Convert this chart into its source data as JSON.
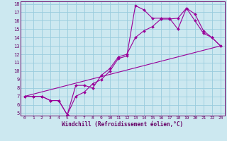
{
  "xlabel": "Windchill (Refroidissement éolien,°C)",
  "bg_color": "#cce8f0",
  "line_color": "#990099",
  "grid_color": "#99ccdd",
  "text_color": "#660066",
  "spine_color": "#660066",
  "xlim": [
    -0.5,
    23.5
  ],
  "ylim": [
    4.7,
    18.3
  ],
  "xticks": [
    0,
    1,
    2,
    3,
    4,
    5,
    6,
    7,
    8,
    9,
    10,
    11,
    12,
    13,
    14,
    15,
    16,
    17,
    18,
    19,
    20,
    21,
    22,
    23
  ],
  "yticks": [
    5,
    6,
    7,
    8,
    9,
    10,
    11,
    12,
    13,
    14,
    15,
    16,
    17,
    18
  ],
  "line1_x": [
    0,
    1,
    2,
    3,
    4,
    5,
    6,
    7,
    8,
    9,
    10,
    11,
    12,
    13,
    14,
    15,
    16,
    17,
    18,
    19,
    20,
    21,
    22,
    23
  ],
  "line1_y": [
    7.0,
    7.0,
    7.0,
    6.5,
    6.5,
    4.8,
    8.3,
    8.3,
    8.0,
    9.5,
    10.3,
    11.7,
    12.0,
    14.0,
    14.8,
    15.3,
    16.2,
    16.2,
    16.3,
    17.5,
    16.8,
    14.8,
    14.0,
    13.0
  ],
  "line2_x": [
    0,
    1,
    2,
    3,
    4,
    5,
    6,
    7,
    8,
    9,
    10,
    11,
    12,
    13,
    14,
    15,
    16,
    17,
    18,
    19,
    20,
    21,
    22,
    23
  ],
  "line2_y": [
    7.0,
    7.0,
    7.0,
    6.5,
    6.5,
    4.8,
    7.0,
    7.5,
    8.5,
    9.0,
    10.0,
    11.5,
    11.8,
    17.8,
    17.3,
    16.3,
    16.3,
    16.3,
    15.0,
    17.5,
    16.0,
    14.5,
    14.0,
    13.0
  ],
  "line3_x": [
    0,
    23
  ],
  "line3_y": [
    7.0,
    13.0
  ]
}
